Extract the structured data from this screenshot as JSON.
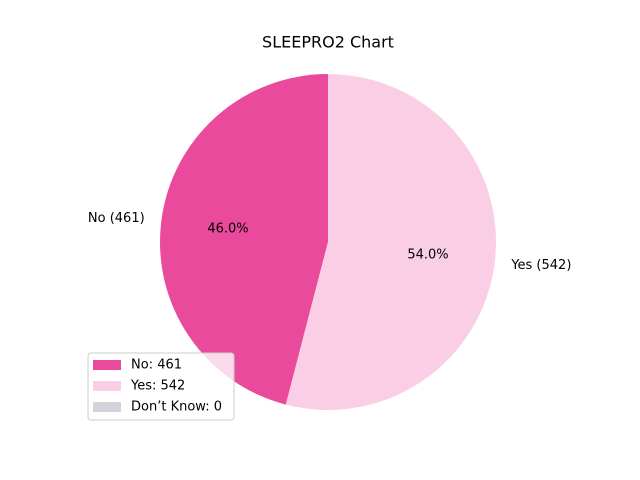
{
  "chart_data": {
    "type": "pie",
    "title": "SLEEPRO2 Chart",
    "categories": [
      "No",
      "Yes",
      "Don’t Know"
    ],
    "values": [
      461,
      542,
      0
    ],
    "colors": [
      "#ea4a9b",
      "#facfe6",
      "#d3d3db"
    ],
    "value_labels": [
      "No (461)",
      "Yes (542)",
      null
    ],
    "percent_labels": [
      "46.0%",
      "54.0%",
      null
    ],
    "legend_labels": [
      "No: 461",
      "Yes: 542",
      "Don’t Know: 0"
    ],
    "legend": "lower left"
  }
}
